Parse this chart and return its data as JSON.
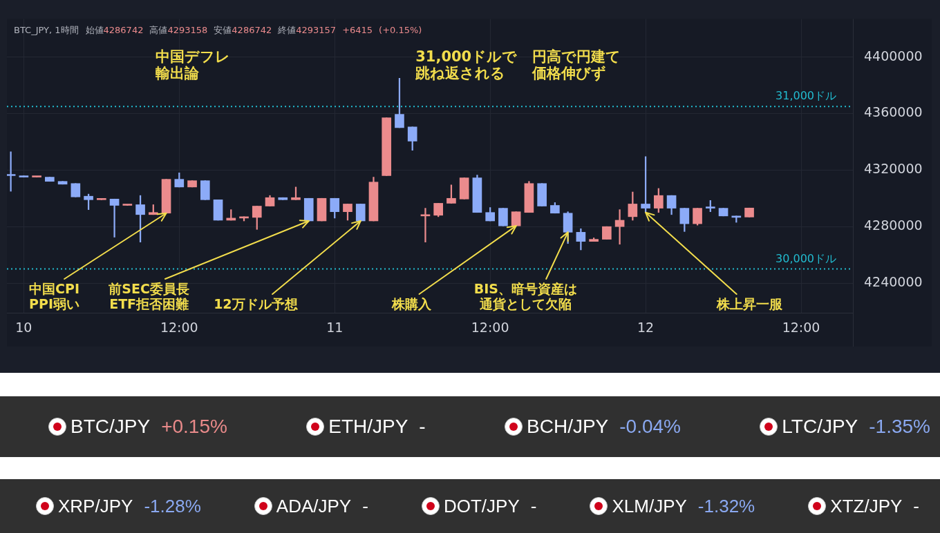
{
  "chart_data": [
    {
      "type": "candlestick",
      "title": "BTC_JPY, 1時間",
      "subtitle": "始値4286742 高値4293158 安値4286742 終値4293157 +6415 (+0.15%)",
      "x": [
        "--07-09T23:00",
        "--07-10T00:00",
        "--07-10T01:00",
        "--07-10T02:00",
        "--07-10T03:00",
        "--07-10T04:00",
        "--07-10T05:00",
        "--07-10T06:00",
        "--07-10T07:00",
        "--07-10T08:00",
        "--07-10T09:00",
        "--07-10T10:00",
        "--07-10T11:00",
        "--07-10T12:00",
        "--07-10T13:00",
        "--07-10T14:00",
        "--07-10T15:00",
        "--07-10T16:00",
        "--07-10T17:00",
        "--07-10T18:00",
        "--07-10T19:00",
        "--07-10T20:00",
        "--07-10T21:00",
        "--07-10T22:00",
        "--07-10T23:00",
        "--07-11T00:00",
        "--07-11T01:00",
        "--07-11T02:00",
        "--07-11T03:00",
        "--07-11T04:00",
        "--07-11T05:00",
        "--07-11T06:00",
        "--07-11T07:00",
        "--07-11T08:00",
        "--07-11T09:00",
        "--07-11T10:00",
        "--07-11T11:00",
        "--07-11T12:00",
        "--07-11T13:00",
        "--07-11T14:00",
        "--07-11T15:00",
        "--07-11T16:00",
        "--07-11T17:00",
        "--07-11T18:00",
        "--07-11T19:00",
        "--07-11T20:00",
        "--07-11T21:00",
        "--07-11T22:00",
        "--07-11T23:00",
        "--07-12T00:00",
        "--07-12T01:00",
        "--07-12T02:00",
        "--07-12T03:00",
        "--07-12T04:00",
        "--07-12T05:00",
        "--07-12T06:00",
        "--07-12T07:00",
        "--07-12T08:00"
      ],
      "ohlc": [
        [
          4317000,
          4333000,
          4305000,
          4316000
        ],
        [
          4316000,
          4316000,
          4315000,
          4315000
        ],
        [
          4315000,
          4315500,
          4315000,
          4315500
        ],
        [
          4315000,
          4315000,
          4312000,
          4312000
        ],
        [
          4312000,
          4312000,
          4310000,
          4310000
        ],
        [
          4310500,
          4310500,
          4301000,
          4301000
        ],
        [
          4301500,
          4303000,
          4292000,
          4299000
        ],
        [
          4299000,
          4299500,
          4299000,
          4299500
        ],
        [
          4299500,
          4299500,
          4272500,
          4295000
        ],
        [
          4295000,
          4295500,
          4295000,
          4295500
        ],
        [
          4295500,
          4302000,
          4269000,
          4288500
        ],
        [
          4288500,
          4295500,
          4288500,
          4290000
        ],
        [
          4289500,
          4313500,
          4289500,
          4313500
        ],
        [
          4313500,
          4318000,
          4308000,
          4308000
        ],
        [
          4308000,
          4312500,
          4308000,
          4312500
        ],
        [
          4312500,
          4312500,
          4299000,
          4299000
        ],
        [
          4299000,
          4299000,
          4284500,
          4284500
        ],
        [
          4284500,
          4292000,
          4284500,
          4286000
        ],
        [
          4286000,
          4287000,
          4284000,
          4287000
        ],
        [
          4286500,
          4294500,
          4278000,
          4294500
        ],
        [
          4294500,
          4302000,
          4294500,
          4300500
        ],
        [
          4300500,
          4300500,
          4299000,
          4299000
        ],
        [
          4299000,
          4308000,
          4299000,
          4300500
        ],
        [
          4300000,
          4300000,
          4284000,
          4284000
        ],
        [
          4284000,
          4300000,
          4284000,
          4300000
        ],
        [
          4300000,
          4300000,
          4286000,
          4290500
        ],
        [
          4290500,
          4296000,
          4284500,
          4296000
        ],
        [
          4296000,
          4296000,
          4284000,
          4284000
        ],
        [
          4284000,
          4315000,
          4284000,
          4311500
        ],
        [
          4316000,
          4357000,
          4316000,
          4357000
        ],
        [
          4359500,
          4385000,
          4350000,
          4350000
        ],
        [
          4350500,
          4350500,
          4334000,
          4340500
        ],
        [
          4287500,
          4293000,
          4269000,
          4288000
        ],
        [
          4288000,
          4296500,
          4287000,
          4296500
        ],
        [
          4296500,
          4309500,
          4296500,
          4300000
        ],
        [
          4299500,
          4314500,
          4299500,
          4314500
        ],
        [
          4314500,
          4316500,
          4290000,
          4290000
        ],
        [
          4290000,
          4293500,
          4284000,
          4284000
        ],
        [
          4293000,
          4293000,
          4280500,
          4280500
        ],
        [
          4280500,
          4290500,
          4280500,
          4290500
        ],
        [
          4290000,
          4312000,
          4290000,
          4310500
        ],
        [
          4310500,
          4310500,
          4294500,
          4294500
        ],
        [
          4295000,
          4297000,
          4289500,
          4289500
        ],
        [
          4289500,
          4290500,
          4268000,
          4276000
        ],
        [
          4276000,
          4278500,
          4263500,
          4269500
        ],
        [
          4269500,
          4272000,
          4269500,
          4271000
        ],
        [
          4271000,
          4280000,
          4271000,
          4280000
        ],
        [
          4280000,
          4292000,
          4267500,
          4284500
        ],
        [
          4287000,
          4304500,
          4284500,
          4296000
        ],
        [
          4296000,
          4329500,
          4290000,
          4293000
        ],
        [
          4293000,
          4307000,
          4290000,
          4302000
        ],
        [
          4302000,
          4302000,
          4288500,
          4293000
        ],
        [
          4293000,
          4293000,
          4276500,
          4282000
        ],
        [
          4282000,
          4293000,
          4281000,
          4293000
        ],
        [
          4293500,
          4298500,
          4290500,
          4293000
        ],
        [
          4293000,
          4293000,
          4287500,
          4287500
        ],
        [
          4287500,
          4287500,
          4283000,
          4286500
        ],
        [
          4286742,
          4293158,
          4286742,
          4293157
        ]
      ],
      "colors": [
        "#8cabf8",
        "#8cabf8",
        "#eb8b8d",
        "#8cabf8",
        "#8cabf8",
        "#8cabf8",
        "#8cabf8",
        "#eb8b8d",
        "#8cabf8",
        "#eb8b8d",
        "#8cabf8",
        "#eb8b8d",
        "#eb8b8d",
        "#8cabf8",
        "#eb8b8d",
        "#8cabf8",
        "#8cabf8",
        "#eb8b8d",
        "#eb8b8d",
        "#eb8b8d",
        "#eb8b8d",
        "#8cabf8",
        "#eb8b8d",
        "#8cabf8",
        "#eb8b8d",
        "#8cabf8",
        "#eb8b8d",
        "#8cabf8",
        "#eb8b8d",
        "#eb8b8d",
        "#8cabf8",
        "#8cabf8",
        "#eb8b8d",
        "#eb8b8d",
        "#eb8b8d",
        "#eb8b8d",
        "#8cabf8",
        "#8cabf8",
        "#8cabf8",
        "#eb8b8d",
        "#eb8b8d",
        "#8cabf8",
        "#8cabf8",
        "#8cabf8",
        "#8cabf8",
        "#eb8b8d",
        "#eb8b8d",
        "#eb8b8d",
        "#eb8b8d",
        "#8cabf8",
        "#eb8b8d",
        "#8cabf8",
        "#8cabf8",
        "#eb8b8d",
        "#8cabf8",
        "#8cabf8",
        "#8cabf8",
        "#eb8b8d"
      ],
      "xlim": [
        "--07-09T22:42",
        "--07-12T16:00"
      ],
      "xticks": [
        {
          "value": "--07-10T00:00",
          "label": "10"
        },
        {
          "value": "--07-10T12:00",
          "label": "12:00"
        },
        {
          "value": "--07-11T00:00",
          "label": "11"
        },
        {
          "value": "--07-11T12:00",
          "label": "12:00"
        },
        {
          "value": "--07-12T00:00",
          "label": "12"
        },
        {
          "value": "--07-12T12:00",
          "label": "12:00"
        }
      ],
      "ylim": [
        4219000,
        4427000
      ],
      "yticks": [
        4240000,
        4280000,
        4320000,
        4360000,
        4400000
      ],
      "grid": true,
      "ref_lines": [
        {
          "axis": "y",
          "value": 4365000,
          "label": "31,000ドル",
          "color": "#22bcd0",
          "line_style": "dotted"
        },
        {
          "axis": "y",
          "value": 4250000,
          "label": "30,000ドル",
          "color": "#22bcd0",
          "line_style": "dotted"
        }
      ],
      "annotations": [
        "中国デフレ輸出論",
        "31,000ドルで跳ね返される",
        "円高で円建て価格伸びず",
        {
          "text": "中国CPI\nPPI弱い",
          "x": "--07-10T11:00",
          "y": 4289500
        },
        {
          "text": "前SEC委員長\nETF拒否困難",
          "x": "--07-10T22:00",
          "y": 4284000
        },
        {
          "text": "12万ドル予想",
          "x": "--07-11T02:00",
          "y": 4284000
        },
        {
          "text": "株購入",
          "x": "--07-11T14:00",
          "y": 4280500
        },
        {
          "text": "BIS、暗号資産は通貨として欠陥",
          "x": "--07-11T18:00",
          "y": 4276000
        },
        {
          "text": "株上昇一服",
          "x": "--07-12T00:00",
          "y": 4290000
        }
      ]
    },
    {
      "type": "other",
      "categories": [
        "BTC/JPY",
        "ETH/JPY",
        "BCH/JPY",
        "LTC/JPY",
        "XRP/JPY",
        "ADA/JPY",
        "DOT/JPY",
        "XLM/JPY",
        "XTZ/JPY"
      ],
      "values": [
        0.15,
        null,
        -0.04,
        -1.35,
        -1.28,
        null,
        null,
        -1.32,
        null
      ],
      "value_labels": [
        "+0.15%",
        "-",
        "-0.04%",
        "-1.35%",
        "-1.28%",
        "-",
        "-",
        "-1.32%",
        "-"
      ]
    }
  ]
}
